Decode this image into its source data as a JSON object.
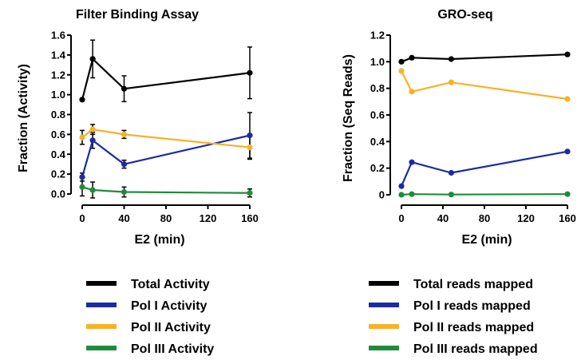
{
  "chart_data": [
    {
      "type": "line",
      "title": "Filter Binding Assay",
      "xlabel": "E2 (min)",
      "ylabel": "Fraction (Activity)",
      "xlim": [
        0,
        160
      ],
      "ylim": [
        0,
        1.6
      ],
      "xticks": [
        "0",
        "40",
        "80",
        "120",
        "160"
      ],
      "yticks": [
        "0.0",
        "0.2",
        "0.4",
        "0.6",
        "0.8",
        "1.0",
        "1.2",
        "1.4",
        "1.6"
      ],
      "x": [
        0,
        10,
        40,
        160
      ],
      "error_bars": true,
      "series": [
        {
          "name": "Total Activity",
          "color": "#000000",
          "values": [
            0.95,
            1.36,
            1.06,
            1.22
          ],
          "errors": [
            0.0,
            0.19,
            0.13,
            0.26
          ]
        },
        {
          "name": "Pol I Activity",
          "color": "#1c2ca0",
          "values": [
            0.17,
            0.54,
            0.3,
            0.59
          ],
          "errors": [
            0.04,
            0.08,
            0.04,
            0.23
          ]
        },
        {
          "name": "Pol II Activity",
          "color": "#f7b225",
          "values": [
            0.57,
            0.65,
            0.6,
            0.47
          ],
          "errors": [
            0.07,
            0.05,
            0.04,
            0.12
          ]
        },
        {
          "name": "Pol III Activity",
          "color": "#1e8c3c",
          "values": [
            0.07,
            0.04,
            0.02,
            0.01
          ],
          "errors": [
            0.09,
            0.08,
            0.05,
            0.04
          ]
        }
      ],
      "legend_placement": "below"
    },
    {
      "type": "line",
      "title": "GRO-seq",
      "xlabel": "E2 (min)",
      "ylabel": "Fraction (Seq Reads)",
      "xlim": [
        0,
        160
      ],
      "ylim": [
        0,
        1.2
      ],
      "xticks": [
        "0",
        "40",
        "80",
        "120",
        "160"
      ],
      "yticks": [
        "0",
        "0.2",
        "0.4",
        "0.6",
        "0.8",
        "1.0",
        "1.2"
      ],
      "x": [
        0,
        10,
        48,
        160
      ],
      "series": [
        {
          "name": "Total reads mapped",
          "color": "#000000",
          "values": [
            1.0,
            1.03,
            1.02,
            1.055
          ]
        },
        {
          "name": "Pol I reads mapped",
          "color": "#1c2ca0",
          "values": [
            0.065,
            0.245,
            0.165,
            0.325
          ]
        },
        {
          "name": "Pol II reads mapped",
          "color": "#f7b225",
          "values": [
            0.93,
            0.775,
            0.845,
            0.72
          ]
        },
        {
          "name": "Pol III reads mapped",
          "color": "#1e8c3c",
          "values": [
            0.0,
            0.005,
            0.002,
            0.005
          ]
        }
      ],
      "legend_placement": "below"
    }
  ]
}
